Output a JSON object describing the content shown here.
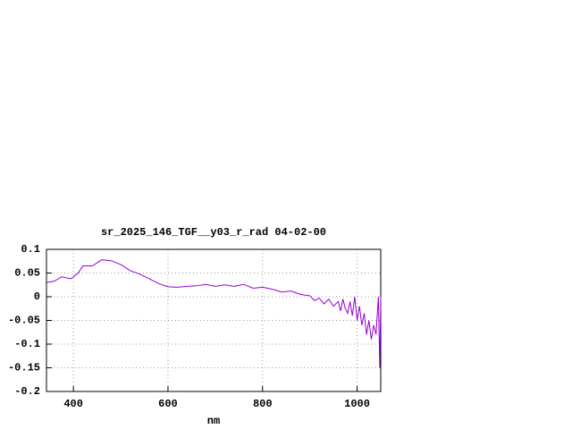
{
  "chart_data": {
    "type": "line",
    "title": "sr_2025_146_TGF__y03_r_rad 04-02-00",
    "x_label": "nm",
    "xlim": [
      343,
      1050
    ],
    "ylim": [
      -0.2,
      0.1
    ],
    "xticks": [
      400,
      600,
      800,
      1000
    ],
    "yticks": [
      0.1,
      0.05,
      0,
      -0.05,
      -0.1,
      -0.15,
      -0.2
    ],
    "grid": true,
    "series": [
      {
        "color": "#9400d3",
        "x": [
          343,
          360,
          375,
          395,
          410,
          420,
          440,
          460,
          480,
          500,
          520,
          540,
          560,
          580,
          600,
          620,
          640,
          660,
          680,
          700,
          720,
          740,
          760,
          780,
          800,
          820,
          840,
          860,
          880,
          900,
          910,
          920,
          930,
          940,
          950,
          960,
          965,
          970,
          975,
          980,
          985,
          990,
          995,
          1000,
          1005,
          1010,
          1015,
          1020,
          1025,
          1030,
          1035,
          1040,
          1045,
          1048,
          1050
        ],
        "values": [
          0.03,
          0.033,
          0.042,
          0.038,
          0.05,
          0.065,
          0.065,
          0.078,
          0.076,
          0.068,
          0.055,
          0.048,
          0.038,
          0.028,
          0.021,
          0.02,
          0.022,
          0.023,
          0.026,
          0.022,
          0.025,
          0.022,
          0.026,
          0.018,
          0.02,
          0.016,
          0.01,
          0.012,
          0.005,
          0.002,
          -0.008,
          -0.003,
          -0.015,
          -0.005,
          -0.02,
          -0.01,
          -0.03,
          -0.005,
          -0.025,
          -0.035,
          -0.01,
          -0.04,
          0.0,
          -0.05,
          -0.02,
          -0.06,
          -0.035,
          -0.08,
          -0.05,
          -0.09,
          -0.06,
          -0.08,
          0.0,
          -0.15,
          0.0
        ]
      }
    ]
  }
}
